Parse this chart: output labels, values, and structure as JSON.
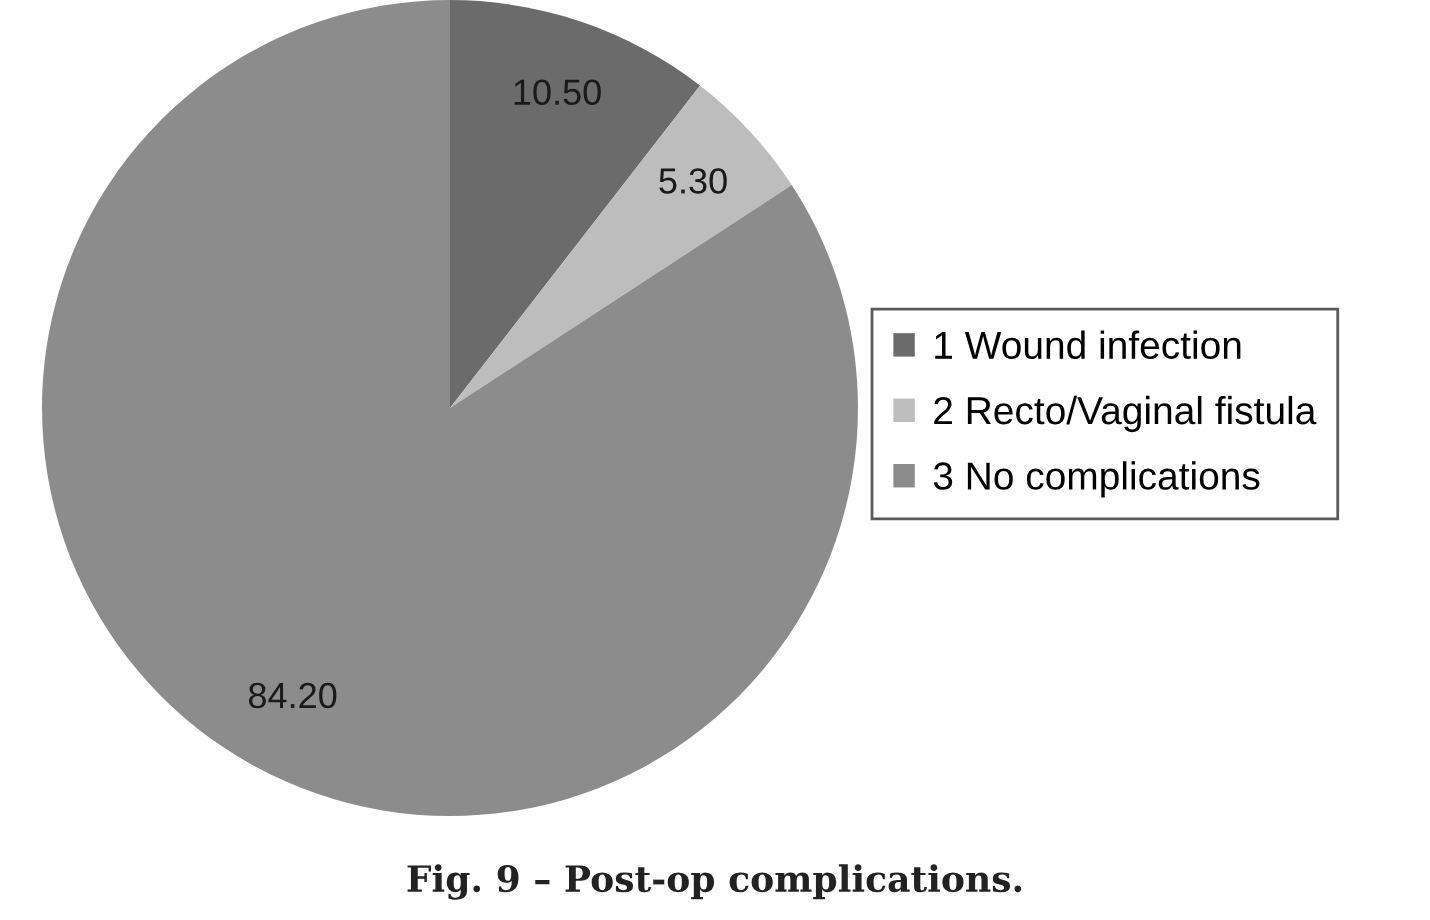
{
  "chart_data": {
    "type": "pie",
    "categories": [
      "1 Wound infection",
      "2 Recto/Vaginal fistula",
      "3 No complications"
    ],
    "values": [
      10.5,
      5.3,
      84.2
    ],
    "colors": [
      "#6b6b6b",
      "#bdbdbd",
      "#8c8c8c"
    ],
    "value_labels": [
      "10.50",
      "5.30",
      "84.20"
    ],
    "legend": "right",
    "annotations": [
      "Fig. 9 – Post-op complications."
    ]
  }
}
